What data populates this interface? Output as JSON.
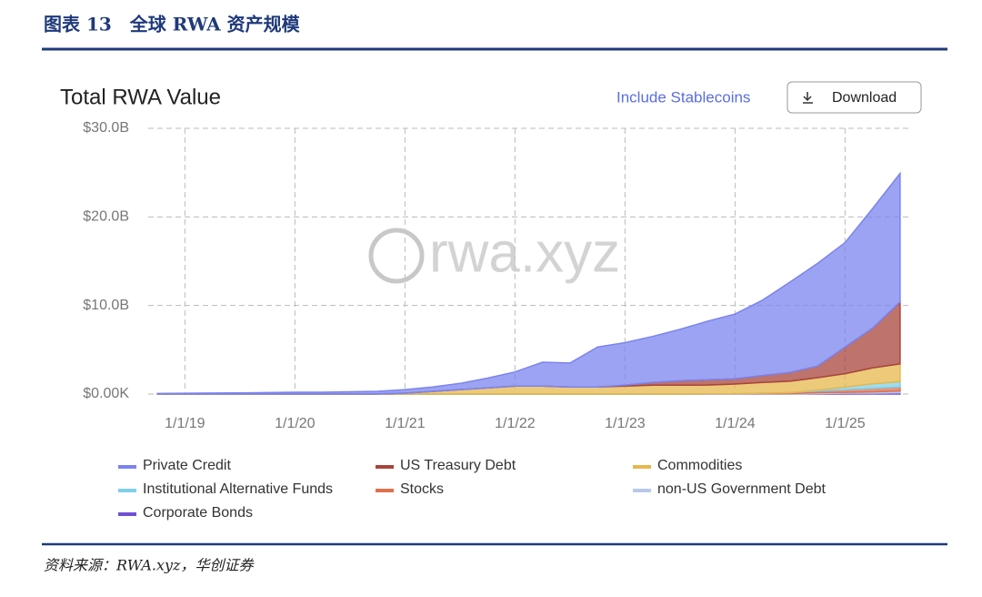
{
  "figure_title": "图表 13　全球 RWA 资产规模",
  "source": "资料来源：RWA.xyz，华创证券",
  "controls": {
    "stablecoins": "Include Stablecoins",
    "download": "Download"
  },
  "watermark": "rwa.xyz",
  "chart_data": {
    "type": "stacked_area",
    "title": "Total RWA Value",
    "x": [
      "2018-10",
      "2019-01",
      "2019-04",
      "2019-07",
      "2019-10",
      "2020-01",
      "2020-04",
      "2020-07",
      "2020-10",
      "2021-01",
      "2021-04",
      "2021-07",
      "2021-10",
      "2022-01",
      "2022-04",
      "2022-07",
      "2022-10",
      "2023-01",
      "2023-04",
      "2023-07",
      "2023-10",
      "2024-01",
      "2024-04",
      "2024-07",
      "2024-10",
      "2025-01",
      "2025-04",
      "2025-07"
    ],
    "xlim": [
      "2018-09",
      "2025-08"
    ],
    "xticks": [
      {
        "value": "2019-01",
        "label": "1/1/19"
      },
      {
        "value": "2020-01",
        "label": "1/1/20"
      },
      {
        "value": "2021-01",
        "label": "1/1/21"
      },
      {
        "value": "2022-01",
        "label": "1/1/22"
      },
      {
        "value": "2023-01",
        "label": "1/1/23"
      },
      {
        "value": "2024-01",
        "label": "1/1/24"
      },
      {
        "value": "2025-01",
        "label": "1/1/25"
      }
    ],
    "ylim": [
      0,
      30
    ],
    "yticks": [
      {
        "value": 0,
        "label": "$0.00K"
      },
      {
        "value": 10,
        "label": "$10.0B"
      },
      {
        "value": 20,
        "label": "$20.0B"
      },
      {
        "value": 30,
        "label": "$30.0B"
      }
    ],
    "grid": true,
    "series": [
      {
        "name": "Private Credit",
        "color": "#7b84ee",
        "values": [
          0.05,
          0.08,
          0.1,
          0.12,
          0.15,
          0.2,
          0.2,
          0.25,
          0.3,
          0.4,
          0.5,
          0.7,
          1.1,
          1.6,
          2.7,
          2.7,
          4.5,
          4.8,
          5.2,
          5.8,
          6.6,
          7.3,
          8.5,
          10.2,
          11.6,
          11.8,
          13.5,
          14.5
        ]
      },
      {
        "name": "US Treasury Debt",
        "color": "#a8443c",
        "values": [
          0,
          0,
          0,
          0,
          0,
          0,
          0,
          0,
          0,
          0,
          0,
          0,
          0,
          0,
          0,
          0,
          0,
          0.1,
          0.3,
          0.5,
          0.6,
          0.6,
          0.8,
          1.0,
          1.3,
          3.0,
          4.5,
          7.0
        ]
      },
      {
        "name": "Commodities",
        "color": "#e6b84e",
        "values": [
          0.01,
          0.01,
          0.01,
          0.01,
          0.01,
          0.01,
          0.01,
          0.01,
          0.01,
          0.1,
          0.3,
          0.5,
          0.7,
          0.9,
          0.9,
          0.8,
          0.8,
          0.9,
          1.0,
          1.0,
          1.0,
          1.1,
          1.2,
          1.3,
          1.4,
          1.5,
          1.8,
          2.0
        ]
      },
      {
        "name": "Institutional Alternative Funds",
        "color": "#7fd0ea",
        "values": [
          0,
          0,
          0,
          0,
          0,
          0,
          0,
          0,
          0,
          0,
          0,
          0,
          0,
          0,
          0,
          0,
          0,
          0,
          0,
          0,
          0,
          0,
          0,
          0,
          0.1,
          0.3,
          0.5,
          0.6
        ]
      },
      {
        "name": "Stocks",
        "color": "#e0704e",
        "values": [
          0,
          0,
          0,
          0,
          0,
          0,
          0,
          0,
          0,
          0,
          0,
          0,
          0,
          0,
          0,
          0,
          0,
          0,
          0,
          0,
          0,
          0,
          0.05,
          0.1,
          0.2,
          0.3,
          0.4,
          0.45
        ]
      },
      {
        "name": "non-US Government Debt",
        "color": "#b8c8ea",
        "values": [
          0,
          0,
          0,
          0,
          0,
          0,
          0,
          0,
          0,
          0,
          0,
          0,
          0,
          0,
          0,
          0,
          0,
          0,
          0,
          0,
          0.02,
          0.03,
          0.05,
          0.05,
          0.1,
          0.1,
          0.15,
          0.2
        ]
      },
      {
        "name": "Corporate Bonds",
        "color": "#7050d2",
        "values": [
          0,
          0,
          0,
          0,
          0,
          0,
          0,
          0,
          0,
          0,
          0,
          0,
          0,
          0,
          0,
          0,
          0,
          0,
          0,
          0,
          0,
          0,
          0,
          0,
          0.05,
          0.1,
          0.1,
          0.15
        ]
      }
    ]
  }
}
